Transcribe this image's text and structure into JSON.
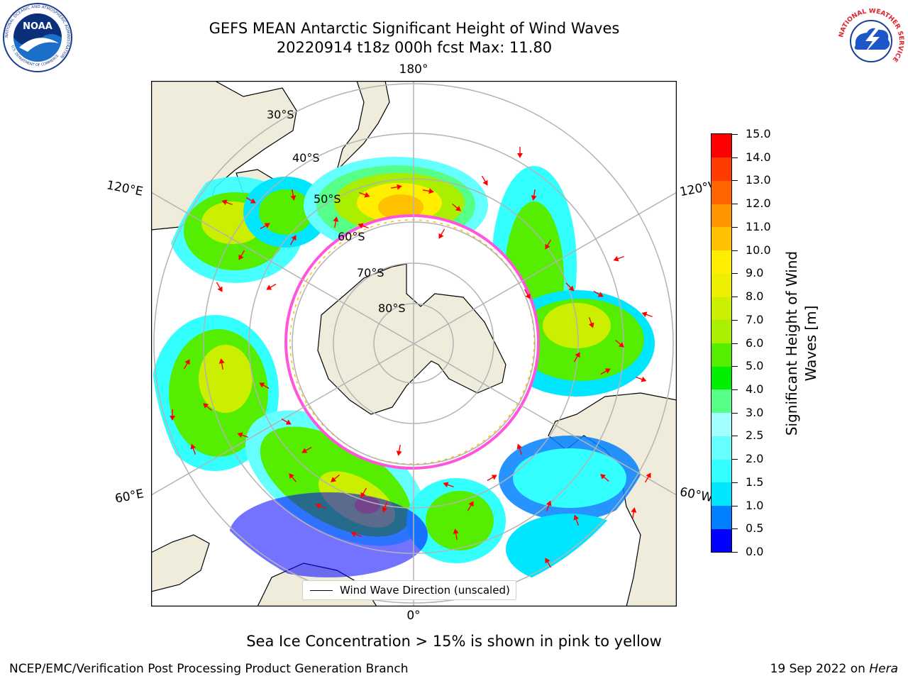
{
  "header": {
    "title_line1": "GEFS MEAN Antarctic Significant Height of Wind Waves",
    "title_line2": "20220914 t18z 000h fcst   Max: 11.80",
    "logo_left_text": "NOAA",
    "logo_left_ring": "NATIONAL OCEANIC AND ATMOSPHERIC ADMINISTRATION",
    "logo_left_ring_bottom": "U.S. DEPARTMENT OF COMMERCE",
    "logo_right_ring": "NATIONAL WEATHER SERVICE"
  },
  "map": {
    "projection": "south polar stereographic",
    "lon_labels": {
      "top": "180°",
      "bottom": "0°",
      "upper_left": "120°E",
      "upper_right": "120°W",
      "lower_left": "60°E",
      "lower_right": "60°W"
    },
    "lat_labels": [
      "30°S",
      "40°S",
      "50°S",
      "60°S",
      "70°S",
      "80°S"
    ],
    "legend": "Wind Wave Direction (unscaled)",
    "colors": {
      "land": "#efecdc",
      "grid": "#b3b3b3",
      "arrow": "#ff0000",
      "ice_edge": "#ff55dd"
    }
  },
  "colorbar": {
    "label": "Significant Height of Wind Waves [m]",
    "ticks": [
      "0.0",
      "0.5",
      "1.0",
      "1.5",
      "2.0",
      "2.5",
      "3.0",
      "4.0",
      "5.0",
      "6.0",
      "7.0",
      "8.0",
      "9.0",
      "10.0",
      "11.0",
      "12.0",
      "13.0",
      "14.0",
      "15.0"
    ],
    "colors": [
      "#0000ff",
      "#0080ff",
      "#00e6ff",
      "#33ffff",
      "#66ffff",
      "#a3ffff",
      "#55ff88",
      "#00ee00",
      "#55ee00",
      "#aaee00",
      "#ccee00",
      "#eeee00",
      "#ffee00",
      "#ffc000",
      "#ff9600",
      "#ff6600",
      "#ff3c00",
      "#ff0000"
    ]
  },
  "footer": {
    "note": "Sea Ice Concentration > 15% is shown in pink to yellow",
    "credit_left": "NCEP/EMC/Verification Post Processing Product Generation Branch",
    "credit_right_date": "19 Sep 2022 on",
    "credit_right_machine": "Hera"
  }
}
